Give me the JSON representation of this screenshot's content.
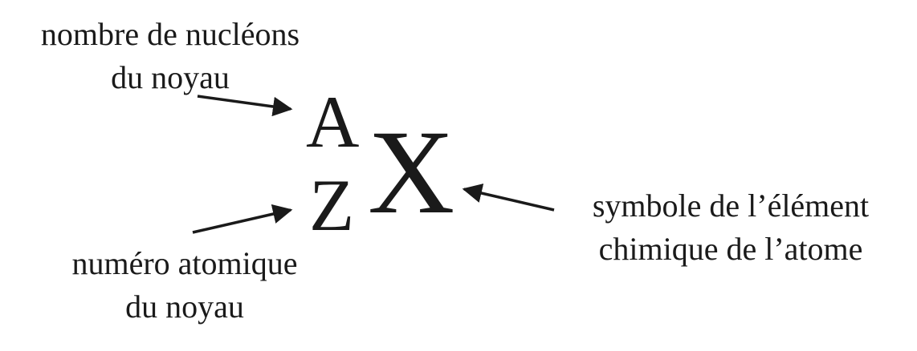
{
  "nuclide": {
    "mass_number": "A",
    "atomic_number": "Z",
    "symbol": "X"
  },
  "labels": {
    "nucleons": [
      "nombre de nucléons",
      "du noyau"
    ],
    "atomic_number": [
      "numéro atomique",
      "du noyau"
    ],
    "element_symbol": [
      "symbole de l’élément",
      "chimique de l’atome"
    ]
  },
  "colors": {
    "ink": "#1a1a1a",
    "background": "#ffffff"
  }
}
